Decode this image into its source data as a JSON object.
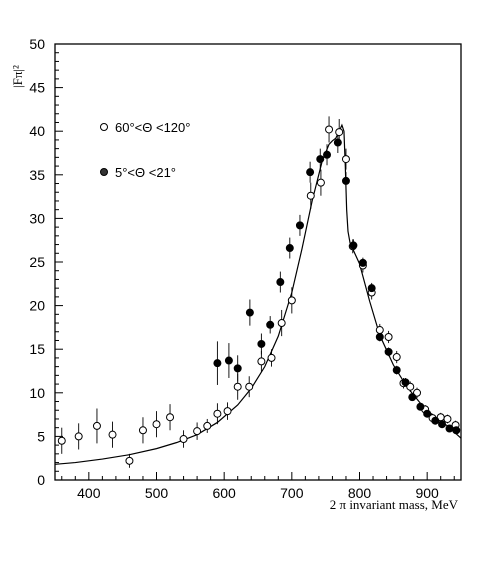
{
  "chart_data": {
    "type": "scatter",
    "ylabel": "|Fπ|²",
    "xlabel": "2 π invariant mass, MeV",
    "xlim": [
      350,
      950
    ],
    "ylim": [
      0,
      50
    ],
    "x_ticks": [
      400,
      500,
      600,
      700,
      800,
      900
    ],
    "x_tick_labels": [
      "400",
      "500",
      "600",
      "700",
      "800",
      "900"
    ],
    "y_ticks": [
      0,
      5,
      10,
      15,
      20,
      25,
      30,
      35,
      40,
      45,
      50
    ],
    "y_tick_labels": [
      "0",
      "5",
      "10",
      "15",
      "20",
      "25",
      "30",
      "35",
      "40",
      "45",
      "50"
    ],
    "legend": [
      "60°<Θ <120°",
      "5°<Θ <21°"
    ],
    "series": [
      {
        "marker": "open-circle",
        "points": [
          {
            "x": 360,
            "y": 4.5,
            "err": 1.5
          },
          {
            "x": 385,
            "y": 5.0,
            "err": 1.5
          },
          {
            "x": 412,
            "y": 6.2,
            "err": 2.0
          },
          {
            "x": 435,
            "y": 5.2,
            "err": 1.5
          },
          {
            "x": 460,
            "y": 2.2,
            "err": 0.8
          },
          {
            "x": 480,
            "y": 5.7,
            "err": 1.5
          },
          {
            "x": 500,
            "y": 6.4,
            "err": 1.5
          },
          {
            "x": 520,
            "y": 7.2,
            "err": 1.5
          },
          {
            "x": 540,
            "y": 4.7,
            "err": 1.0
          },
          {
            "x": 560,
            "y": 5.6,
            "err": 1.0
          },
          {
            "x": 575,
            "y": 6.2,
            "err": 0.8
          },
          {
            "x": 590,
            "y": 7.6,
            "err": 1.2
          },
          {
            "x": 605,
            "y": 7.9,
            "err": 1.0
          },
          {
            "x": 620,
            "y": 10.7,
            "err": 1.5
          },
          {
            "x": 637,
            "y": 10.7,
            "err": 1.2
          },
          {
            "x": 655,
            "y": 13.6,
            "err": 1.2
          },
          {
            "x": 670,
            "y": 14.0,
            "err": 1.0
          },
          {
            "x": 685,
            "y": 18.0,
            "err": 1.5
          },
          {
            "x": 700,
            "y": 20.6,
            "err": 1.5
          },
          {
            "x": 728,
            "y": 32.6,
            "err": 1.5
          },
          {
            "x": 743,
            "y": 34.1,
            "err": 1.5
          },
          {
            "x": 755,
            "y": 40.2,
            "err": 1.5
          },
          {
            "x": 770,
            "y": 39.9,
            "err": 1.5
          },
          {
            "x": 780,
            "y": 36.8,
            "err": 1.2
          },
          {
            "x": 790,
            "y": 26.8,
            "err": 0.8
          },
          {
            "x": 805,
            "y": 24.6,
            "err": 0.8
          },
          {
            "x": 818,
            "y": 21.5,
            "err": 0.8
          },
          {
            "x": 830,
            "y": 17.2,
            "err": 0.7
          },
          {
            "x": 843,
            "y": 16.4,
            "err": 0.7
          },
          {
            "x": 855,
            "y": 14.1,
            "err": 0.7
          },
          {
            "x": 865,
            "y": 11.1,
            "err": 0.6
          },
          {
            "x": 875,
            "y": 10.7,
            "err": 0.6
          },
          {
            "x": 885,
            "y": 10.0,
            "err": 0.6
          },
          {
            "x": 897,
            "y": 8.1,
            "err": 0.5
          },
          {
            "x": 908,
            "y": 7.1,
            "err": 0.5
          },
          {
            "x": 920,
            "y": 7.2,
            "err": 0.5
          },
          {
            "x": 930,
            "y": 7.0,
            "err": 0.5
          },
          {
            "x": 942,
            "y": 6.3,
            "err": 0.5
          }
        ]
      },
      {
        "marker": "filled-circle",
        "points": [
          {
            "x": 590,
            "y": 13.4,
            "err": 2.5
          },
          {
            "x": 607,
            "y": 13.7,
            "err": 2.0
          },
          {
            "x": 620,
            "y": 12.8,
            "err": 1.5
          },
          {
            "x": 638,
            "y": 19.2,
            "err": 1.5
          },
          {
            "x": 655,
            "y": 15.6,
            "err": 1.2
          },
          {
            "x": 668,
            "y": 17.8,
            "err": 1.0
          },
          {
            "x": 683,
            "y": 22.7,
            "err": 1.2
          },
          {
            "x": 697,
            "y": 26.6,
            "err": 1.2
          },
          {
            "x": 712,
            "y": 29.2,
            "err": 1.2
          },
          {
            "x": 727,
            "y": 35.3,
            "err": 1.2
          },
          {
            "x": 742,
            "y": 36.8,
            "err": 1.2
          },
          {
            "x": 752,
            "y": 37.3,
            "err": 1.2
          },
          {
            "x": 768,
            "y": 38.7,
            "err": 1.2
          },
          {
            "x": 780,
            "y": 34.3,
            "err": 1.0
          },
          {
            "x": 791,
            "y": 26.9,
            "err": 0.7
          },
          {
            "x": 805,
            "y": 24.9,
            "err": 0.6
          },
          {
            "x": 818,
            "y": 22.0,
            "err": 0.6
          },
          {
            "x": 830,
            "y": 16.4,
            "err": 0.5
          },
          {
            "x": 843,
            "y": 14.7,
            "err": 0.5
          },
          {
            "x": 855,
            "y": 12.6,
            "err": 0.5
          },
          {
            "x": 868,
            "y": 11.2,
            "err": 0.5
          },
          {
            "x": 878,
            "y": 9.5,
            "err": 0.4
          },
          {
            "x": 890,
            "y": 8.4,
            "err": 0.4
          },
          {
            "x": 900,
            "y": 7.6,
            "err": 0.4
          },
          {
            "x": 912,
            "y": 6.8,
            "err": 0.4
          },
          {
            "x": 922,
            "y": 6.4,
            "err": 0.4
          },
          {
            "x": 933,
            "y": 5.9,
            "err": 0.4
          },
          {
            "x": 943,
            "y": 5.7,
            "err": 0.4
          }
        ]
      }
    ],
    "fit_curve": {
      "x": [
        350,
        380,
        420,
        460,
        500,
        530,
        560,
        590,
        620,
        640,
        660,
        680,
        700,
        715,
        730,
        745,
        755,
        760,
        765,
        770,
        774,
        777,
        779,
        781,
        783,
        786,
        790,
        800,
        815,
        830,
        850,
        870,
        890,
        910,
        930,
        950
      ],
      "y": [
        1.8,
        2.0,
        2.4,
        2.9,
        3.6,
        4.3,
        5.2,
        6.6,
        8.6,
        10.5,
        13.0,
        16.5,
        21.5,
        26.5,
        32.0,
        36.6,
        38.5,
        38.9,
        39.2,
        40.0,
        40.7,
        40.0,
        36.0,
        31.0,
        28.5,
        27.2,
        26.5,
        24.8,
        20.5,
        16.6,
        13.2,
        10.7,
        8.8,
        7.3,
        6.2,
        4.8
      ]
    }
  }
}
